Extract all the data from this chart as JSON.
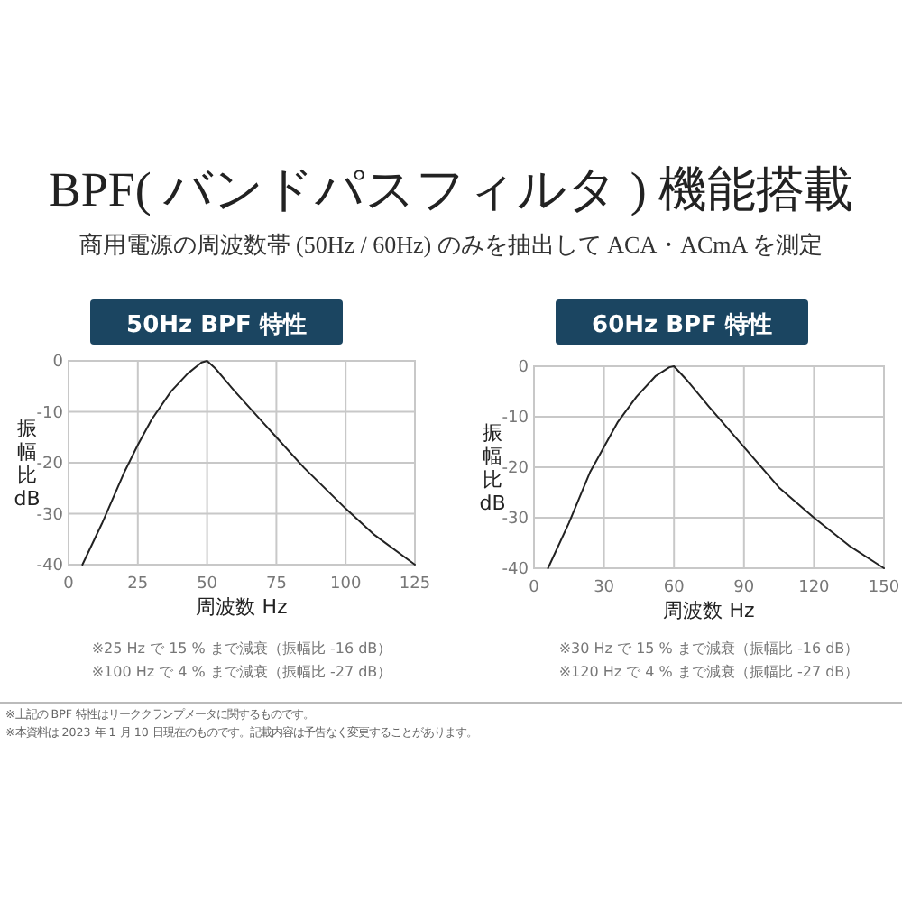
{
  "chart_data": [
    {
      "type": "other",
      "title": "BPF( バンドパスフィルタ ) 機能搭載",
      "subtitle": "商用電源の周波数帯 (50Hz / 60Hz) のみを抽出して ACA・ACmA を測定",
      "annotations": [
        "※上記の BPF 特性はリーククランプメータに関するものです。",
        "※本資料は 2023 年 1 月 10 日現在のものです。記載内容は予告なく変更することがあります。"
      ]
    },
    {
      "type": "line",
      "title": "50Hz BPF 特性",
      "xlabel": "周波数 Hz",
      "ylabel": "振幅比 dB",
      "xlim": [
        0,
        125
      ],
      "ylim": [
        -40,
        0
      ],
      "xticks": [
        0,
        25,
        50,
        75,
        100,
        125
      ],
      "yticks": [
        -40,
        -30,
        -20,
        -10,
        0
      ],
      "grid": true,
      "x": [
        5,
        12,
        20,
        25,
        30,
        37,
        43,
        48,
        50,
        53,
        60,
        70,
        75,
        85,
        100,
        110,
        125
      ],
      "series": [
        {
          "color": "#222222",
          "values": [
            -40,
            -32,
            -22,
            -16.5,
            -11.5,
            -6,
            -2.5,
            -0.3,
            0,
            -1.5,
            -6,
            -12,
            -15,
            -21,
            -29,
            -34,
            -40
          ]
        }
      ],
      "annotations": [
        "※25 Hz で 15 % まで減衰（振幅比 -16 dB）",
        "※100 Hz で 4 % まで減衰（振幅比 -27 dB）"
      ]
    },
    {
      "type": "line",
      "title": "60Hz BPF 特性",
      "xlabel": "周波数 Hz",
      "ylabel": "振幅比 dB",
      "xlim": [
        0,
        150
      ],
      "ylim": [
        -40,
        0
      ],
      "xticks": [
        0,
        30,
        60,
        90,
        120,
        150
      ],
      "yticks": [
        -40,
        -30,
        -20,
        -10,
        0
      ],
      "grid": true,
      "x": [
        6,
        15,
        24,
        30,
        36,
        44,
        52,
        58,
        60,
        66,
        75,
        90,
        105,
        120,
        135,
        150
      ],
      "series": [
        {
          "color": "#222222",
          "values": [
            -40,
            -31,
            -21,
            -16,
            -11,
            -6,
            -2,
            -0.2,
            0,
            -3,
            -8,
            -16,
            -24,
            -30,
            -35.5,
            -40
          ]
        }
      ],
      "annotations": [
        "※30 Hz で 15 % まで減衰（振幅比 -16 dB）",
        "※120 Hz で 4 % まで減衰（振幅比 -27 dB）"
      ]
    }
  ]
}
